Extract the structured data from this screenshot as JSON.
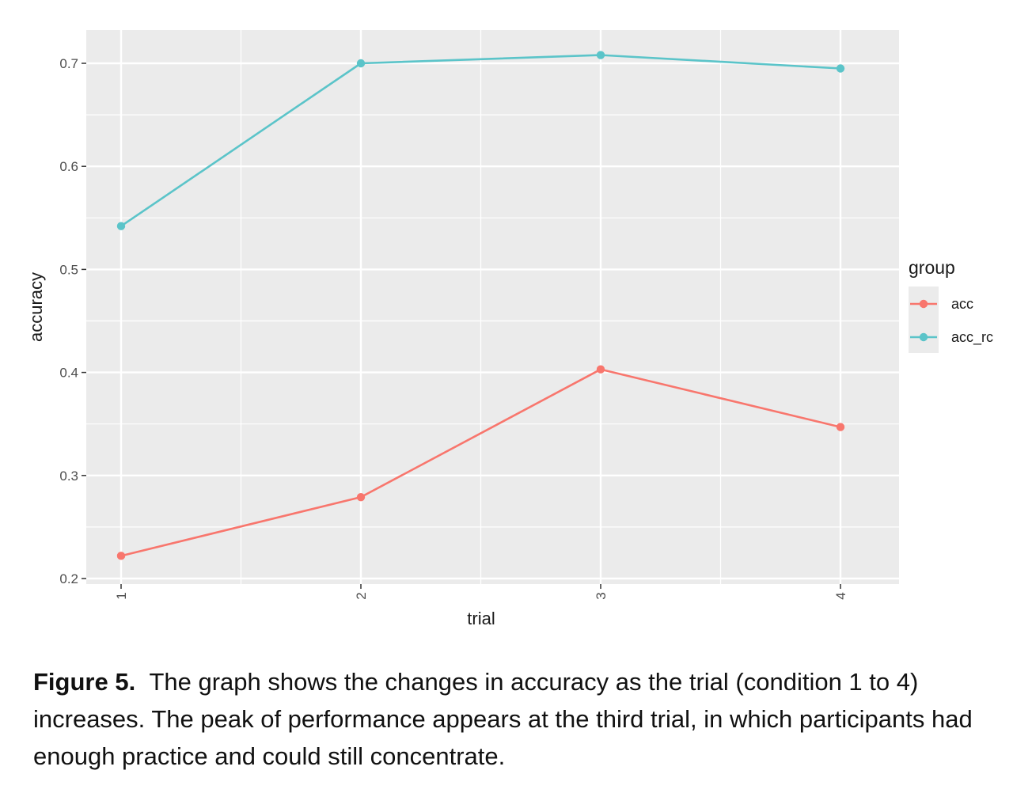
{
  "chart_data": {
    "type": "line",
    "title": "",
    "xlabel": "trial",
    "ylabel": "accuracy",
    "x": [
      1,
      2,
      3,
      4
    ],
    "x_tick_labels": [
      "1",
      "2",
      "3",
      "4"
    ],
    "x_tick_rotation": "vertical",
    "ylim": [
      0.2,
      0.73
    ],
    "y_ticks": [
      0.2,
      0.3,
      0.4,
      0.5,
      0.6,
      0.7
    ],
    "y_tick_labels": [
      "0.2",
      "0.3",
      "0.4",
      "0.5",
      "0.6",
      "0.7"
    ],
    "grid": true,
    "panel_background": "#ebebeb",
    "legend": {
      "title": "group",
      "position": "right"
    },
    "series": [
      {
        "name": "acc",
        "color": "#f8766d",
        "values": [
          0.222,
          0.279,
          0.403,
          0.347
        ]
      },
      {
        "name": "acc_rc",
        "color": "#5bc4c9",
        "values": [
          0.542,
          0.7,
          0.708,
          0.695
        ]
      }
    ]
  },
  "caption": {
    "label": "Figure 5.",
    "text": "The graph shows the changes in accuracy as the trial (condition 1 to 4) increases. The peak of performance appears at the third trial, in which participants had enough practice and could still concentrate."
  }
}
